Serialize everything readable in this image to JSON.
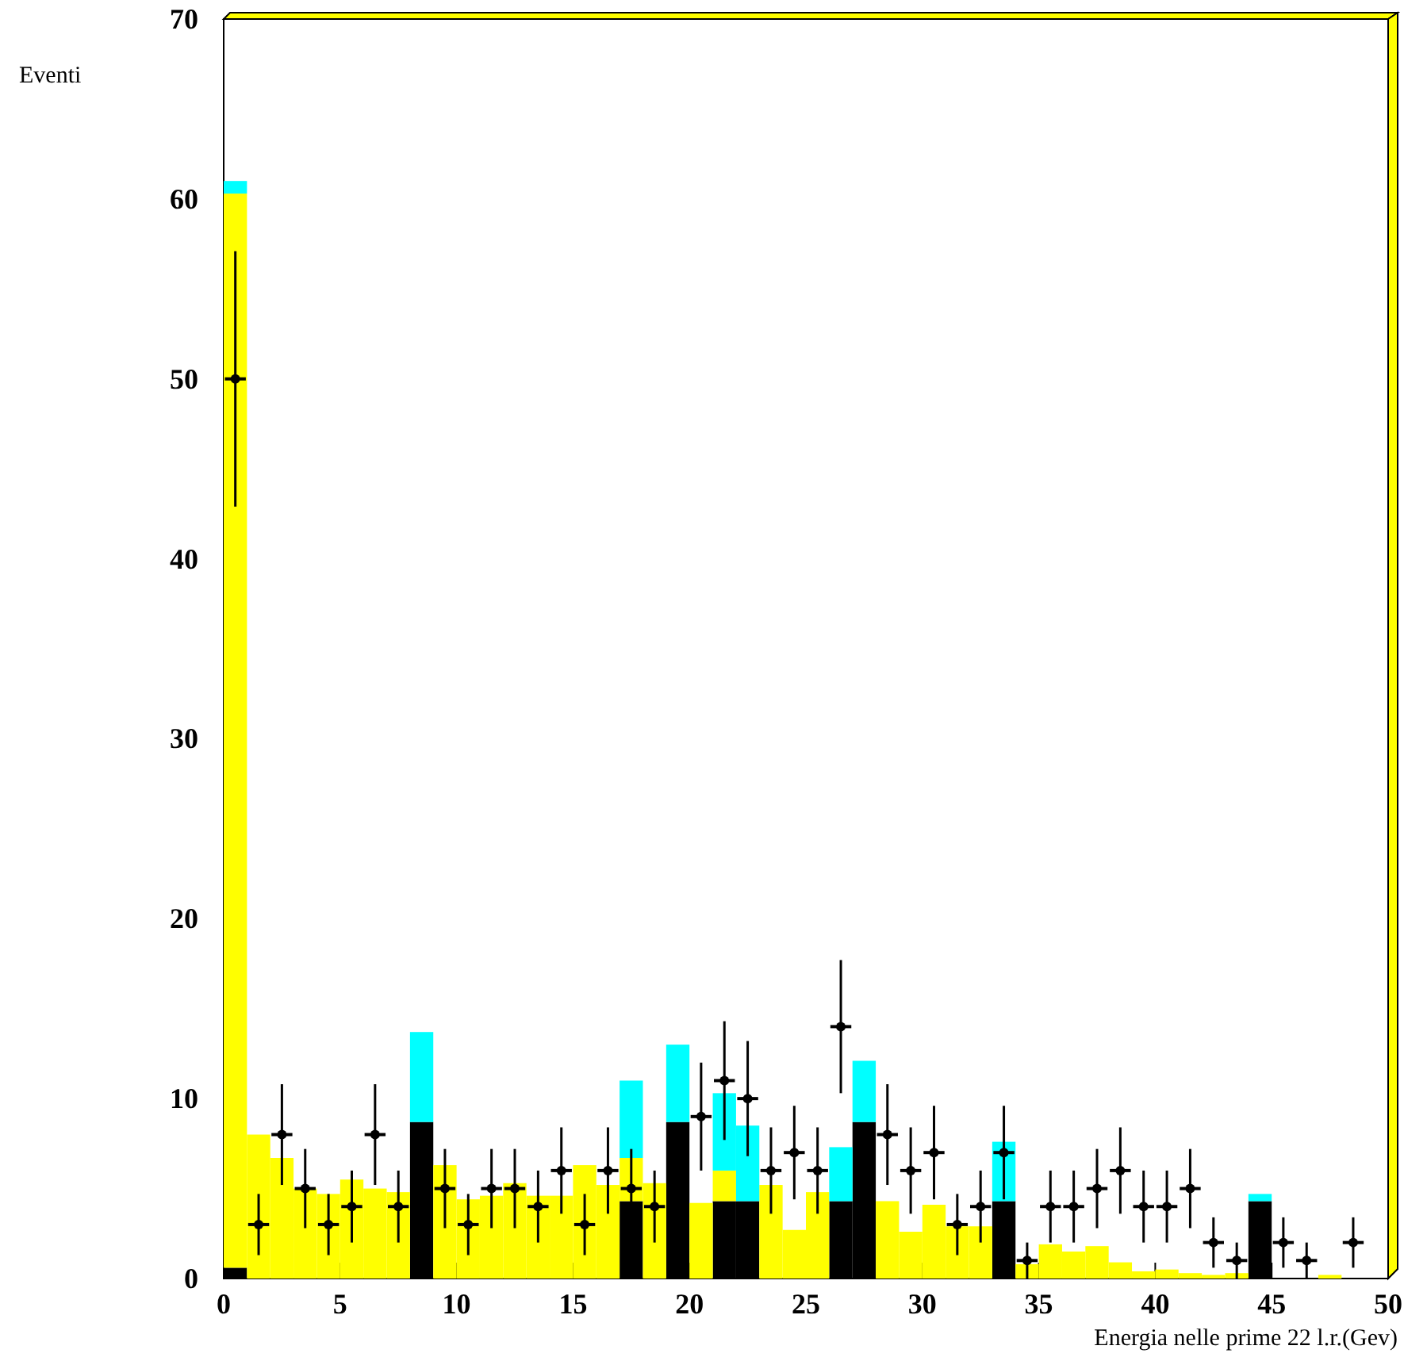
{
  "chart_data": {
    "type": "bar",
    "xlabel": "Energia nelle prime 22 l.r.(Gev)",
    "ylabel": "Eventi",
    "x": [
      0.5,
      1.5,
      2.5,
      3.5,
      4.5,
      5.5,
      6.5,
      7.5,
      8.5,
      9.5,
      10.5,
      11.5,
      12.5,
      13.5,
      14.5,
      15.5,
      16.5,
      17.5,
      18.5,
      19.5,
      20.5,
      21.5,
      22.5,
      23.5,
      24.5,
      25.5,
      26.5,
      27.5,
      28.5,
      29.5,
      30.5,
      31.5,
      32.5,
      33.5,
      34.5,
      35.5,
      36.5,
      37.5,
      38.5,
      39.5,
      40.5,
      41.5,
      42.5,
      43.5,
      44.5,
      45.5,
      46.5,
      47.5,
      48.5,
      49.5
    ],
    "stacked": true,
    "series": [
      {
        "color": "#000000",
        "values": [
          0.6,
          0,
          0,
          0,
          0,
          0,
          0,
          0,
          8.7,
          0,
          0,
          0,
          0,
          0,
          0,
          0,
          0,
          4.3,
          0,
          8.7,
          0,
          4.3,
          4.3,
          0,
          0,
          0,
          4.3,
          8.7,
          0,
          0,
          0,
          0,
          0,
          4.3,
          0,
          0,
          0,
          0,
          0,
          0,
          0,
          0,
          0,
          0,
          4.3,
          0,
          0,
          0,
          0,
          0
        ]
      },
      {
        "color": "#ffff00",
        "values": [
          59.7,
          8.0,
          6.7,
          5.0,
          4.7,
          5.5,
          5.0,
          4.8,
          0,
          6.3,
          4.4,
          4.6,
          5.3,
          4.6,
          4.6,
          6.3,
          5.2,
          2.4,
          5.3,
          0,
          4.2,
          1.7,
          0,
          5.2,
          2.7,
          4.8,
          0,
          0,
          4.3,
          2.6,
          4.1,
          2.9,
          2.9,
          0,
          0.8,
          1.9,
          1.5,
          1.8,
          0.9,
          0.4,
          0.5,
          0.3,
          0.2,
          0.3,
          0,
          0,
          0,
          0.2,
          0,
          0
        ]
      },
      {
        "color": "#00ffff",
        "values": [
          0.7,
          0,
          0,
          0,
          0,
          0,
          0,
          0,
          5.0,
          0,
          0,
          0,
          0,
          0,
          0,
          0,
          0,
          4.3,
          0,
          4.3,
          0,
          4.3,
          4.2,
          0,
          0,
          0,
          3.0,
          3.4,
          0,
          0,
          0,
          0,
          0,
          3.3,
          0,
          0,
          0,
          0,
          0,
          0,
          0,
          0,
          0,
          0,
          0.4,
          0,
          0,
          0,
          0,
          0
        ]
      },
      {
        "type": "scatter",
        "color": "#000000",
        "marker": "circle",
        "x": [
          0.5,
          1.5,
          2.5,
          3.5,
          4.5,
          5.5,
          6.5,
          7.5,
          9.5,
          10.5,
          11.5,
          12.5,
          13.5,
          14.5,
          15.5,
          16.5,
          17.5,
          18.5,
          20.5,
          21.5,
          22.5,
          23.5,
          24.5,
          25.5,
          26.5,
          28.5,
          29.5,
          30.5,
          31.5,
          32.5,
          33.5,
          34.5,
          35.5,
          36.5,
          37.5,
          38.5,
          39.5,
          40.5,
          41.5,
          42.5,
          43.5,
          45.5,
          46.5,
          48.5
        ],
        "values": [
          50,
          3,
          8,
          5,
          3,
          4,
          8,
          4,
          5,
          3,
          5,
          5,
          4,
          6,
          3,
          6,
          5,
          4,
          9,
          11,
          10,
          6,
          7,
          6,
          14,
          8,
          6,
          7,
          3,
          4,
          7,
          1,
          4,
          4,
          5,
          6,
          4,
          4,
          5,
          2,
          1,
          2,
          1,
          2
        ],
        "errors": [
          7.1,
          1.7,
          2.8,
          2.2,
          1.7,
          2,
          2.8,
          2,
          2.2,
          1.7,
          2.2,
          2.2,
          2,
          2.4,
          1.7,
          2.4,
          2.2,
          2,
          3,
          3.3,
          3.2,
          2.4,
          2.6,
          2.4,
          3.7,
          2.8,
          2.4,
          2.6,
          1.7,
          2,
          2.6,
          1,
          2,
          2,
          2.2,
          2.4,
          2,
          2,
          2.2,
          1.4,
          1,
          1.4,
          1,
          1.4
        ],
        "xerrors": [
          0.45,
          0.45,
          0.45,
          0.45,
          0.45,
          0.45,
          0.45,
          0.45,
          0.45,
          0.45,
          0.45,
          0.45,
          0.45,
          0.45,
          0.45,
          0.45,
          0.45,
          0.45,
          0.45,
          0.45,
          0.45,
          0.45,
          0.45,
          0.45,
          0.45,
          0.45,
          0.45,
          0.45,
          0.45,
          0.45,
          0.45,
          0.45,
          0.45,
          0.45,
          0.45,
          0.45,
          0.45,
          0.45,
          0.45,
          0.45,
          0.45,
          0.45,
          0.45,
          0.45
        ]
      }
    ],
    "xlim": [
      0,
      50
    ],
    "xticks": [
      0,
      5,
      10,
      15,
      20,
      25,
      30,
      35,
      40,
      45,
      50
    ],
    "ylim": [
      0,
      70
    ],
    "yticks": [
      0,
      10,
      20,
      30,
      40,
      50,
      60,
      70
    ],
    "grid": false
  }
}
